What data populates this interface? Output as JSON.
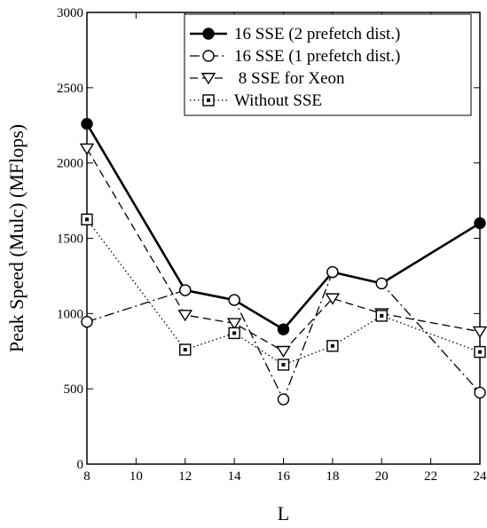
{
  "chart_data": {
    "type": "line",
    "xlabel": "L",
    "ylabel": "Peak Speed (Mulc) (MFlops)",
    "xlim": [
      8,
      24
    ],
    "ylim": [
      0,
      3000
    ],
    "xticks": [
      8,
      10,
      12,
      14,
      16,
      18,
      20,
      22,
      24
    ],
    "yticks": [
      0,
      500,
      1000,
      1500,
      2000,
      2500,
      3000
    ],
    "grid": false,
    "legend_position": "top-right",
    "series": [
      {
        "name": "16 SSE (2 prefetch dist.)",
        "marker": "filled-circle",
        "line_style": "solid",
        "x": [
          8,
          12,
          14,
          16,
          18,
          20,
          24
        ],
        "y": [
          2260,
          1155,
          1090,
          895,
          1275,
          1200,
          1600
        ]
      },
      {
        "name": "16 SSE (1 prefetch dist.)",
        "marker": "open-circle",
        "line_style": "dash-dot",
        "x": [
          8,
          12,
          14,
          16,
          18,
          20,
          24
        ],
        "y": [
          945,
          1155,
          1090,
          430,
          1275,
          1200,
          475
        ]
      },
      {
        "name": " 8 SSE for Xeon",
        "marker": "open-triangle-down",
        "line_style": "dashed",
        "x": [
          8,
          12,
          14,
          16,
          18,
          20,
          24
        ],
        "y": [
          2095,
          990,
          935,
          750,
          1100,
          1000,
          880
        ]
      },
      {
        "name": "Without SSE",
        "marker": "open-square",
        "line_style": "dotted",
        "x": [
          8,
          12,
          14,
          16,
          18,
          20,
          24
        ],
        "y": [
          1625,
          760,
          870,
          660,
          785,
          985,
          745
        ]
      }
    ]
  }
}
